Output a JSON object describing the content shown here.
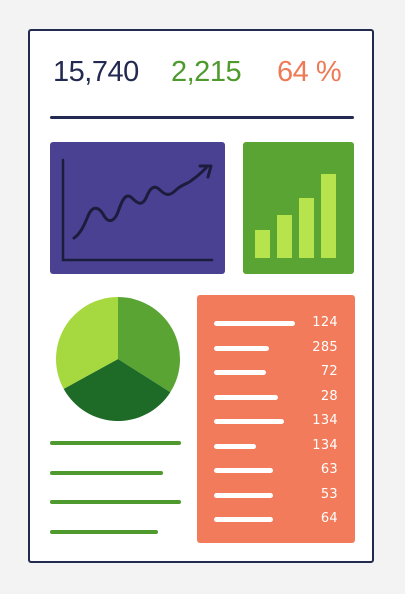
{
  "kpis": [
    {
      "value": "15,740",
      "color": "#222a52"
    },
    {
      "value": "2,215",
      "color": "#4f9a2e"
    },
    {
      "value": "64 %",
      "color": "#ee7a56"
    }
  ],
  "colors": {
    "frame": "#222a52",
    "divider": "#222a52",
    "line_panel_bg": "#4a4192",
    "line_stroke": "#1c1c3c",
    "bar_panel_bg": "#5aa434",
    "bar_fill": "#b7e34d",
    "list_panel_bg": "#f17b5a",
    "text_lines": "#4f9a2e",
    "pie": [
      "#5aa434",
      "#1e6b27",
      "#a6d93f"
    ]
  },
  "icons": {
    "trend_arrow": "trend-arrow-icon"
  },
  "mini_bar_chart": {
    "values": [
      0.28,
      0.43,
      0.6,
      0.84
    ]
  },
  "pie_chart": {
    "slices": [
      {
        "fraction": 0.34
      },
      {
        "fraction": 0.33
      },
      {
        "fraction": 0.33
      }
    ]
  },
  "list": {
    "rows": [
      {
        "value": "124",
        "bar_fraction": 0.58
      },
      {
        "value": "285",
        "bar_fraction": 0.39
      },
      {
        "value": "72",
        "bar_fraction": 0.37
      },
      {
        "value": "28",
        "bar_fraction": 0.46
      },
      {
        "value": "134",
        "bar_fraction": 0.5
      },
      {
        "value": "134",
        "bar_fraction": 0.3
      },
      {
        "value": "63",
        "bar_fraction": 0.42
      },
      {
        "value": "53",
        "bar_fraction": 0.42
      },
      {
        "value": "64",
        "bar_fraction": 0.42
      }
    ]
  }
}
